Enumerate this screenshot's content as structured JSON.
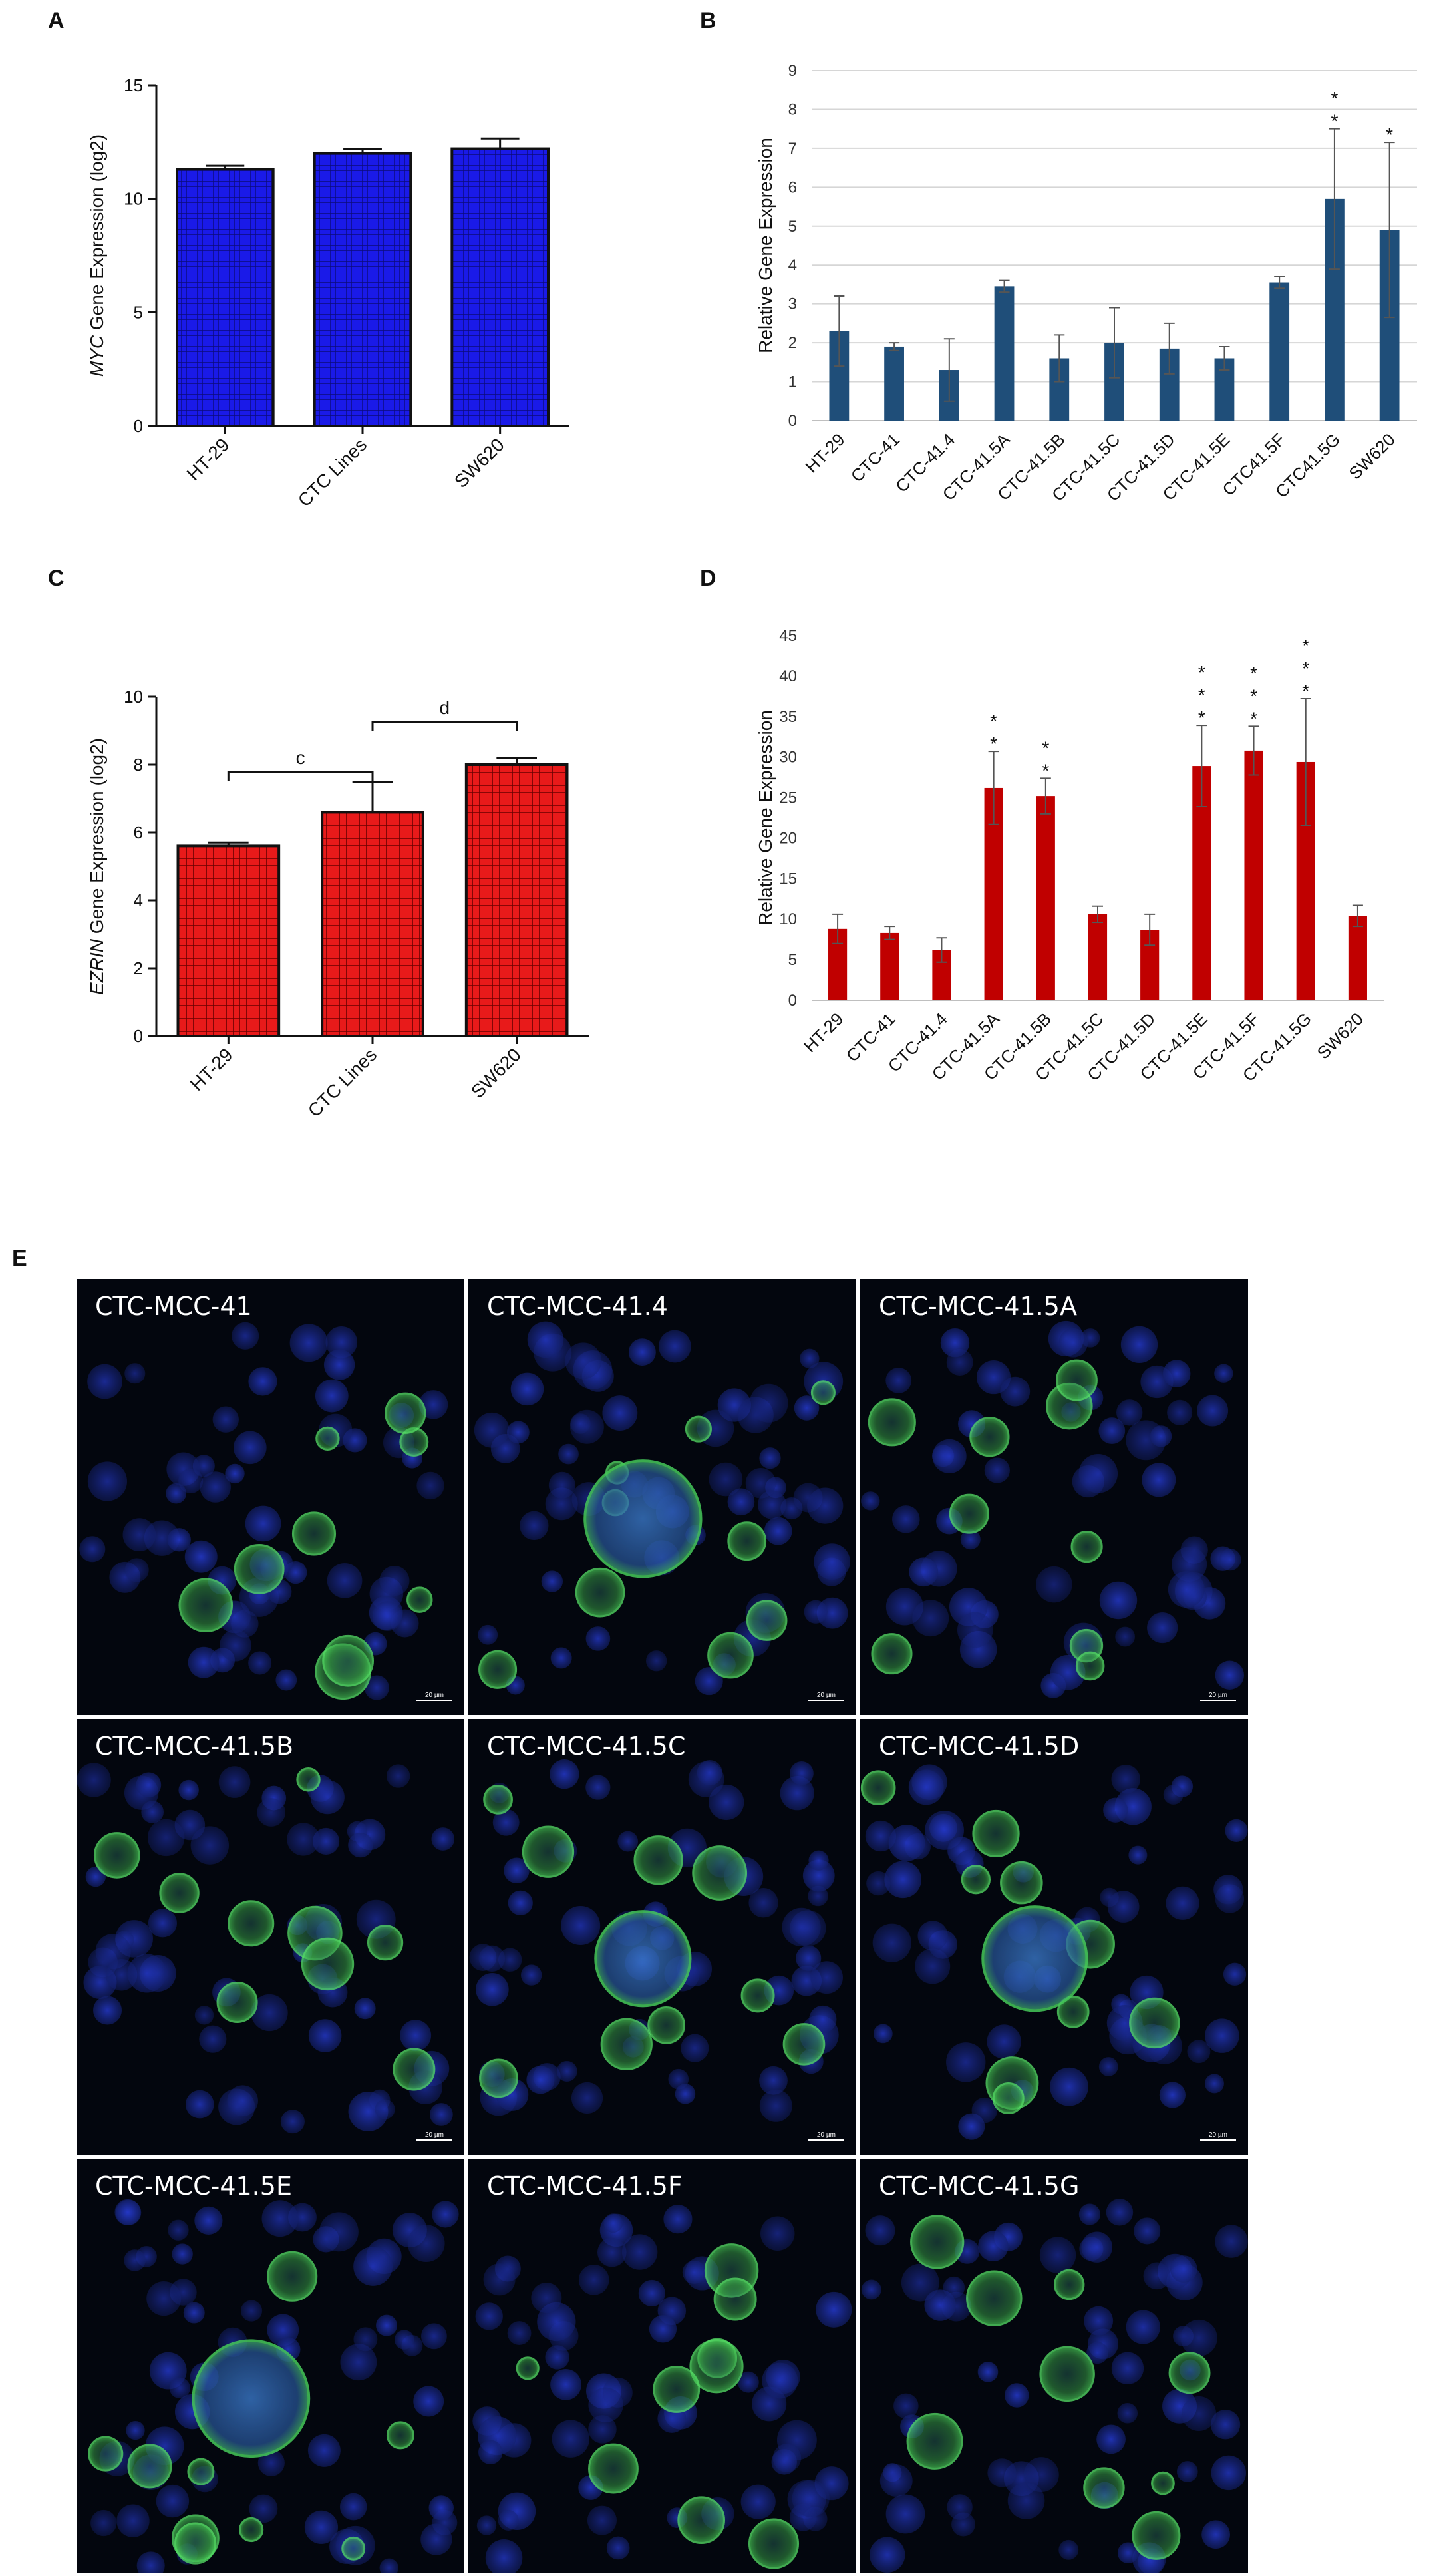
{
  "chart_data": [
    {
      "panel": "A",
      "type": "bar",
      "ylabel_italic": "MYC",
      "ylabel_rest": " Gene Expression (log2)",
      "ylim": [
        0,
        15
      ],
      "yticks": [
        "0",
        "5",
        "10",
        "15"
      ],
      "categories": [
        "HT-29",
        "CTC Lines",
        "SW620"
      ],
      "values": [
        11.3,
        12.0,
        12.2
      ],
      "errors": [
        0.15,
        0.2,
        0.45
      ],
      "bar_color": "#1a1ae8",
      "pattern": "grid",
      "grid": false
    },
    {
      "panel": "B",
      "type": "bar",
      "ylabel": "Relative Gene Expression",
      "ylim": [
        0,
        9
      ],
      "yticks": [
        "0",
        "1",
        "2",
        "3",
        "4",
        "5",
        "6",
        "7",
        "8",
        "9"
      ],
      "categories": [
        "HT-29",
        "CTC-41",
        "CTC-41.4",
        "CTC-41.5A",
        "CTC-41.5B",
        "CTC-41.5C",
        "CTC-41.5D",
        "CTC-41.5E",
        "CTC41.5F",
        "CTC41.5G",
        "SW620"
      ],
      "values": [
        2.3,
        1.9,
        1.3,
        3.45,
        1.6,
        2.0,
        1.85,
        1.6,
        3.55,
        5.7,
        4.9
      ],
      "errors": [
        0.9,
        0.1,
        0.8,
        0.15,
        0.6,
        0.9,
        0.65,
        0.3,
        0.15,
        1.8,
        2.25
      ],
      "significance": [
        "",
        "",
        "",
        "",
        "",
        "",
        "",
        "",
        "",
        "* *",
        "*"
      ],
      "bar_color": "#1f4e79",
      "grid": true
    },
    {
      "panel": "C",
      "type": "bar",
      "ylabel_italic": "EZRIN",
      "ylabel_rest": " Gene Expression (log2)",
      "ylim": [
        0,
        10
      ],
      "yticks": [
        "0",
        "2",
        "4",
        "6",
        "8",
        "10"
      ],
      "categories": [
        "HT-29",
        "CTC Lines",
        "SW620"
      ],
      "values": [
        5.6,
        6.6,
        8.0
      ],
      "errors": [
        0.1,
        0.9,
        0.2
      ],
      "bar_color": "#e81a1a",
      "pattern": "grid",
      "brackets": [
        {
          "label": "c",
          "from": 0,
          "to": 1
        },
        {
          "label": "d",
          "from": 1,
          "to": 2
        }
      ],
      "grid": false
    },
    {
      "panel": "D",
      "type": "bar",
      "ylabel": "Relative Gene Expression",
      "ylim": [
        0,
        45
      ],
      "yticks": [
        "0",
        "5",
        "10",
        "15",
        "20",
        "25",
        "30",
        "35",
        "40",
        "45"
      ],
      "categories": [
        "HT-29",
        "CTC-41",
        "CTC-41.4",
        "CTC-41.5A",
        "CTC-41.5B",
        "CTC-41.5C",
        "CTC-41.5D",
        "CTC-41.5E",
        "CTC-41.5F",
        "CTC-41.5G",
        "SW620"
      ],
      "values": [
        8.8,
        8.3,
        6.2,
        26.2,
        25.2,
        10.6,
        8.7,
        28.9,
        30.8,
        29.4,
        10.4
      ],
      "errors": [
        1.8,
        0.8,
        1.5,
        4.5,
        2.2,
        1.0,
        1.9,
        5.0,
        3.0,
        7.8,
        1.3
      ],
      "significance": [
        "",
        "",
        "",
        "* *",
        "* *",
        "",
        "",
        "* * *",
        "* * *",
        "* * *",
        ""
      ],
      "bar_color": "#c00000",
      "grid": false
    }
  ],
  "panel_letters": {
    "a": "A",
    "b": "B",
    "c": "C",
    "d": "D",
    "e": "E"
  },
  "micrographs": {
    "scale_bar_label": "20 µm",
    "tiles": [
      {
        "label": "CTC-MCC-41",
        "scale_bar": true
      },
      {
        "label": "CTC-MCC-41.4",
        "scale_bar": true
      },
      {
        "label": "CTC-MCC-41.5A",
        "scale_bar": true
      },
      {
        "label": "CTC-MCC-41.5B",
        "scale_bar": true
      },
      {
        "label": "CTC-MCC-41.5C",
        "scale_bar": true
      },
      {
        "label": "CTC-MCC-41.5D",
        "scale_bar": true
      },
      {
        "label": "CTC-MCC-41.5E",
        "scale_bar": false
      },
      {
        "label": "CTC-MCC-41.5F",
        "scale_bar": false
      },
      {
        "label": "CTC-MCC-41.5G",
        "scale_bar": false
      }
    ]
  }
}
